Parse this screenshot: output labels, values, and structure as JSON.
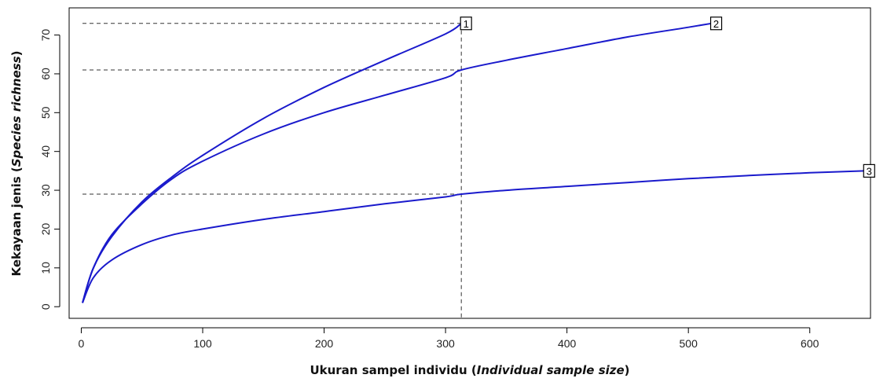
{
  "chart_data": {
    "type": "line",
    "title": "",
    "xlabel_parts": [
      "Ukuran sampel individu (",
      "Individual sample size",
      ")"
    ],
    "ylabel_parts": [
      "Kekayaan jenis (",
      "Species richness",
      ")"
    ],
    "xlim": [
      -10,
      650
    ],
    "ylim": [
      -3,
      77
    ],
    "x_ticks": [
      0,
      100,
      200,
      300,
      400,
      500,
      600
    ],
    "y_ticks": [
      0,
      10,
      20,
      30,
      40,
      50,
      60,
      70
    ],
    "line_color": "#1a1acc",
    "reference_lines": {
      "x": 313,
      "y_values": [
        73,
        61,
        29
      ]
    },
    "series": [
      {
        "label": "1",
        "x": [
          1,
          10,
          25,
          50,
          75,
          100,
          150,
          200,
          250,
          300,
          313
        ],
        "y": [
          1,
          10,
          18,
          27,
          33.5,
          39,
          48.5,
          56.5,
          63.5,
          70.3,
          73
        ]
      },
      {
        "label": "2",
        "x": [
          1,
          10,
          25,
          50,
          75,
          100,
          150,
          200,
          250,
          300,
          313,
          350,
          400,
          450,
          500,
          519
        ],
        "y": [
          1,
          10,
          18.5,
          26.5,
          33,
          37.5,
          44.5,
          50,
          54.5,
          59,
          61,
          63.5,
          66.5,
          69.5,
          72,
          73
        ]
      },
      {
        "label": "3",
        "x": [
          1,
          10,
          25,
          50,
          75,
          100,
          150,
          200,
          250,
          300,
          313,
          350,
          400,
          450,
          500,
          550,
          600,
          645
        ],
        "y": [
          1,
          7.5,
          12,
          16,
          18.5,
          20,
          22.5,
          24.5,
          26.5,
          28.3,
          29,
          30,
          31,
          32,
          33,
          33.8,
          34.5,
          35
        ]
      }
    ]
  }
}
